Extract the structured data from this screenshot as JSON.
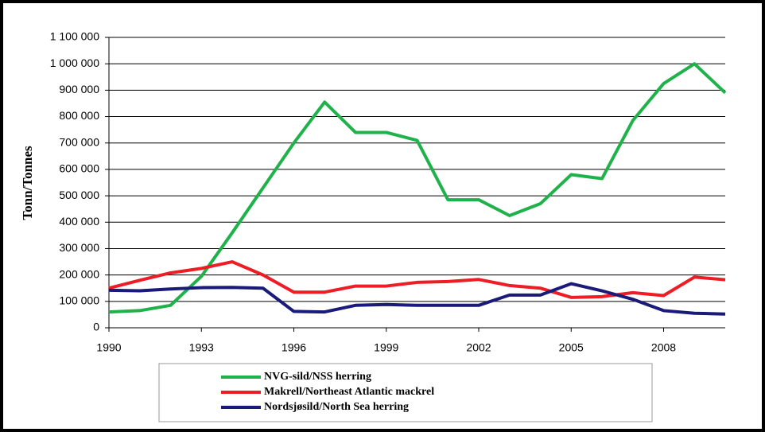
{
  "chart_data": {
    "type": "line",
    "y_label": "Tonn/Tonnes",
    "x": [
      1990,
      1991,
      1992,
      1993,
      1994,
      1995,
      1996,
      1997,
      1998,
      1999,
      2000,
      2001,
      2002,
      2003,
      2004,
      2005,
      2006,
      2007,
      2008,
      2009,
      2010
    ],
    "xlim": [
      1990,
      2010
    ],
    "xticks": [
      1990,
      1993,
      1996,
      1999,
      2002,
      2005,
      2008
    ],
    "ylim": [
      0,
      1100000
    ],
    "yticks": [
      0,
      {
        "value": 100000,
        "label": "100 000"
      },
      {
        "value": 200000,
        "label": "200 000"
      },
      {
        "value": 300000,
        "label": "300 000"
      },
      {
        "value": 400000,
        "label": "400 000"
      },
      {
        "value": 500000,
        "label": "500 000"
      },
      {
        "value": 600000,
        "label": "600 000"
      },
      {
        "value": 700000,
        "label": "700 000"
      },
      {
        "value": 800000,
        "label": "800 000"
      },
      {
        "value": 900000,
        "label": "900 000"
      },
      {
        "value": 1000000,
        "label": "1 000 000"
      },
      {
        "value": 1100000,
        "label": "1 100 000"
      }
    ],
    "grid": true,
    "series": [
      {
        "name": "NVG-sild/NSS herring",
        "color": "#1fb24a",
        "values": [
          60000,
          65000,
          85000,
          195000,
          360000,
          530000,
          700000,
          855000,
          740000,
          740000,
          710000,
          485000,
          485000,
          425000,
          470000,
          580000,
          565000,
          785000,
          925000,
          1000000,
          890000
        ]
      },
      {
        "name": "Makrell/Northeast Atlantic mackrel",
        "color": "#ee1c24",
        "values": [
          150000,
          180000,
          208000,
          225000,
          250000,
          200000,
          135000,
          135000,
          158000,
          158000,
          172000,
          175000,
          183000,
          160000,
          150000,
          115000,
          118000,
          133000,
          122000,
          192000,
          182000
        ]
      },
      {
        "name": "Nordsjøsild/North Sea herring",
        "color": "#1a1a7a",
        "values": [
          142000,
          140000,
          147000,
          152000,
          153000,
          150000,
          62000,
          60000,
          85000,
          88000,
          85000,
          85000,
          85000,
          124000,
          124000,
          167000,
          140000,
          108000,
          65000,
          55000,
          52000
        ]
      }
    ]
  }
}
